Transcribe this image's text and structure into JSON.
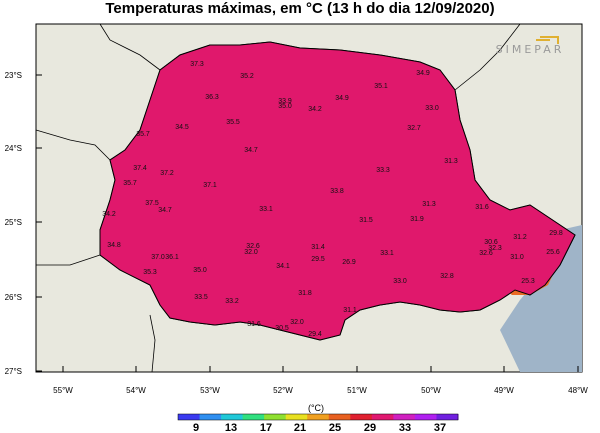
{
  "title": "Temperaturas máximas, em °C (13 h do dia 12/09/2020)",
  "logo_text": "SIMEPAR",
  "colorbar": {
    "unit": "(°C)",
    "ticks": [
      "9",
      "13",
      "17",
      "21",
      "25",
      "29",
      "33",
      "37"
    ],
    "colors": [
      "#3a3af0",
      "#2f8ff0",
      "#20c8d8",
      "#30e080",
      "#8fe030",
      "#e8e020",
      "#f0a020",
      "#e86020",
      "#e02030",
      "#e01870",
      "#d020c0",
      "#b020f0",
      "#7020e0"
    ]
  },
  "axes": {
    "lon_labels": [
      "55°W",
      "54°W",
      "53°W",
      "52°W",
      "51°W",
      "50°W",
      "49°W",
      "48°W"
    ],
    "lat_labels": [
      "23°S",
      "24°S",
      "25°S",
      "26°S",
      "27°S"
    ]
  },
  "stations": [
    {
      "v": "37.3"
    },
    {
      "v": "35.2"
    },
    {
      "v": "35.1"
    },
    {
      "v": "34.9"
    },
    {
      "v": "36.3"
    },
    {
      "v": "33.9"
    },
    {
      "v": "35.0"
    },
    {
      "v": "34.9"
    },
    {
      "v": "34.2"
    },
    {
      "v": "33.0"
    },
    {
      "v": "35.5"
    },
    {
      "v": "34.5"
    },
    {
      "v": "35.7"
    },
    {
      "v": "32.7"
    },
    {
      "v": "34.7"
    },
    {
      "v": "37.4"
    },
    {
      "v": "37.2"
    },
    {
      "v": "31.3"
    },
    {
      "v": "35.7"
    },
    {
      "v": "37.1"
    },
    {
      "v": "33.3"
    },
    {
      "v": "33.8"
    },
    {
      "v": "37.5"
    },
    {
      "v": "34.7"
    },
    {
      "v": "31.3"
    },
    {
      "v": "31.6"
    },
    {
      "v": "34.2"
    },
    {
      "v": "33.1"
    },
    {
      "v": "31.5"
    },
    {
      "v": "31.9"
    },
    {
      "v": "31.2"
    },
    {
      "v": "29.8"
    },
    {
      "v": "34.8"
    },
    {
      "v": "32.6"
    },
    {
      "v": "31.4"
    },
    {
      "v": "30.6"
    },
    {
      "v": "37.0"
    },
    {
      "v": "36.1"
    },
    {
      "v": "32.0"
    },
    {
      "v": "29.5"
    },
    {
      "v": "26.9"
    },
    {
      "v": "33.1"
    },
    {
      "v": "32.3"
    },
    {
      "v": "32.6"
    },
    {
      "v": "31.0"
    },
    {
      "v": "25.6"
    },
    {
      "v": "35.3"
    },
    {
      "v": "35.0"
    },
    {
      "v": "34.1"
    },
    {
      "v": "33.0"
    },
    {
      "v": "32.8"
    },
    {
      "v": "25.3"
    },
    {
      "v": "33.5"
    },
    {
      "v": "33.2"
    },
    {
      "v": "31.8"
    },
    {
      "v": "31.1"
    },
    {
      "v": "31.6"
    },
    {
      "v": "30.5"
    },
    {
      "v": "32.0"
    },
    {
      "v": "29.4"
    }
  ]
}
